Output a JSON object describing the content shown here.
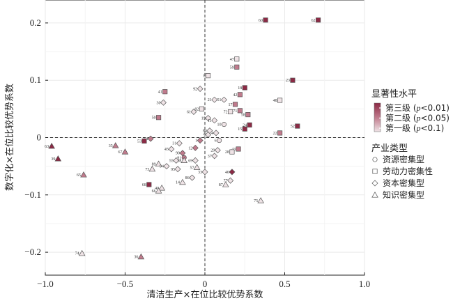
{
  "chart_data": {
    "type": "scatter",
    "title": "",
    "xlabel": "清洁生产×在位比较优势系数",
    "ylabel": "数字化×在位比较优势系数",
    "xlim": [
      -1.0,
      1.0
    ],
    "ylim": [
      -0.24,
      0.24
    ],
    "xticks": [
      -1.0,
      -0.5,
      0,
      0.5,
      1.0
    ],
    "xtick_labels": [
      "−1.0",
      "−0.5",
      "0",
      "0.5",
      "1.0"
    ],
    "yticks": [
      -0.2,
      -0.1,
      0,
      0.1,
      0.2
    ],
    "ytick_labels": [
      "−0.2",
      "−0.1",
      "0",
      "0.1",
      "0.2"
    ],
    "grid": true,
    "reference_lines": {
      "x": 0,
      "y": 0,
      "style": "dashed"
    },
    "legend": {
      "placement": "right",
      "significance_title": "显著性水平",
      "significance_levels": [
        {
          "text": "第三级 (",
          "p": "p",
          "rest": "<0.01)",
          "color": "#8c2a45"
        },
        {
          "text": "第二级 (",
          "p": "p",
          "rest": "<0.05)",
          "color": "#c07a8c"
        },
        {
          "text": "第一级 (",
          "p": "p",
          "rest": "<0.1)",
          "color": "#efe3e6"
        }
      ],
      "industry_title": "产业类型",
      "industry_types": [
        {
          "label": "资源密集型",
          "shape": "circle"
        },
        {
          "label": "劳动力密集性",
          "shape": "square"
        },
        {
          "label": "资本密集型",
          "shape": "diamond"
        },
        {
          "label": "知识密集型",
          "shape": "triangle"
        }
      ]
    },
    "points": [
      {
        "id": "62",
        "x": 0.71,
        "y": 0.205,
        "shape": "square",
        "level": 3
      },
      {
        "id": "60",
        "x": 0.38,
        "y": 0.205,
        "shape": "square",
        "level": 3
      },
      {
        "id": "47",
        "x": 0.2,
        "y": 0.137,
        "shape": "square",
        "level": 1
      },
      {
        "id": "59",
        "x": 0.2,
        "y": 0.123,
        "shape": "square",
        "level": 2
      },
      {
        "id": "23",
        "x": 0.55,
        "y": 0.1,
        "shape": "square",
        "level": 3
      },
      {
        "id": "8",
        "x": 0.02,
        "y": 0.108,
        "shape": "square",
        "level": 1
      },
      {
        "id": "92",
        "x": -0.03,
        "y": 0.085,
        "shape": "diamond",
        "level": 1
      },
      {
        "id": "41",
        "x": -0.25,
        "y": 0.08,
        "shape": "square",
        "level": 2
      },
      {
        "id": "18",
        "x": 0.25,
        "y": 0.087,
        "shape": "square",
        "level": 3
      },
      {
        "id": "21",
        "x": 0.06,
        "y": 0.066,
        "shape": "diamond",
        "level": 1
      },
      {
        "id": "51",
        "x": 0.12,
        "y": 0.066,
        "shape": "diamond",
        "level": 1
      },
      {
        "id": "42",
        "x": 0.22,
        "y": 0.075,
        "shape": "square",
        "level": 2
      },
      {
        "id": "48",
        "x": 0.47,
        "y": 0.065,
        "shape": "square",
        "level": 1
      },
      {
        "id": "30",
        "x": -0.26,
        "y": 0.061,
        "shape": "diamond",
        "level": 1
      },
      {
        "id": "17",
        "x": 0.19,
        "y": 0.058,
        "shape": "square",
        "level": 2
      },
      {
        "id": "82",
        "x": -0.02,
        "y": 0.05,
        "shape": "square",
        "level": 1
      },
      {
        "id": "61",
        "x": -0.07,
        "y": 0.045,
        "shape": "diamond",
        "level": 1
      },
      {
        "id": "50",
        "x": -0.29,
        "y": 0.035,
        "shape": "square",
        "level": 2
      },
      {
        "id": "71",
        "x": 0.22,
        "y": 0.047,
        "shape": "square",
        "level": 2
      },
      {
        "id": "72",
        "x": 0.16,
        "y": 0.045,
        "shape": "square",
        "level": 1
      },
      {
        "id": "58",
        "x": 0.27,
        "y": 0.04,
        "shape": "square",
        "level": 2
      },
      {
        "id": "52",
        "x": 0.58,
        "y": 0.02,
        "shape": "square",
        "level": 3
      },
      {
        "id": "24",
        "x": 0.28,
        "y": 0.022,
        "shape": "square",
        "level": 3
      },
      {
        "id": "15",
        "x": 0.25,
        "y": 0.015,
        "shape": "square",
        "level": 3
      },
      {
        "id": "22",
        "x": 0.47,
        "y": 0.008,
        "shape": "square",
        "level": 2
      },
      {
        "id": "19",
        "x": 0.02,
        "y": 0.034,
        "shape": "diamond",
        "level": 1
      },
      {
        "id": "11",
        "x": 0.06,
        "y": 0.03,
        "shape": "diamond",
        "level": 1
      },
      {
        "id": "10",
        "x": 0.12,
        "y": 0.023,
        "shape": "circle",
        "level": 1
      },
      {
        "id": "84",
        "x": 0.03,
        "y": 0.012,
        "shape": "diamond",
        "level": 1
      },
      {
        "id": "9",
        "x": 0.02,
        "y": 0.005,
        "shape": "diamond",
        "level": 1
      },
      {
        "id": "4",
        "x": 0.07,
        "y": 0.008,
        "shape": "diamond",
        "level": 1
      },
      {
        "id": "6",
        "x": 0.09,
        "y": -0.005,
        "shape": "circle",
        "level": 1
      },
      {
        "id": "54",
        "x": -0.34,
        "y": -0.002,
        "shape": "diamond",
        "level": 2
      },
      {
        "id": "53",
        "x": -0.38,
        "y": -0.006,
        "shape": "square",
        "level": 3
      },
      {
        "id": "31",
        "x": -0.16,
        "y": -0.01,
        "shape": "diamond",
        "level": 1
      },
      {
        "id": "1",
        "x": -0.03,
        "y": -0.005,
        "shape": "diamond",
        "level": 2
      },
      {
        "id": "63",
        "x": -0.96,
        "y": -0.015,
        "shape": "triangle",
        "level": 3
      },
      {
        "id": "39",
        "x": -0.92,
        "y": -0.037,
        "shape": "triangle",
        "level": 3
      },
      {
        "id": "35",
        "x": -0.56,
        "y": -0.014,
        "shape": "triangle",
        "level": 2
      },
      {
        "id": "67",
        "x": -0.5,
        "y": -0.025,
        "shape": "triangle",
        "level": 2
      },
      {
        "id": "45",
        "x": -0.21,
        "y": -0.02,
        "shape": "diamond",
        "level": 1
      },
      {
        "id": "12",
        "x": -0.06,
        "y": -0.018,
        "shape": "diamond",
        "level": 2
      },
      {
        "id": "29",
        "x": 0.08,
        "y": -0.022,
        "shape": "diamond",
        "level": 1
      },
      {
        "id": "43",
        "x": 0.21,
        "y": -0.02,
        "shape": "square",
        "level": 2
      },
      {
        "id": "28",
        "x": 0.17,
        "y": -0.025,
        "shape": "square",
        "level": 1
      },
      {
        "id": "37",
        "x": 0.06,
        "y": -0.032,
        "shape": "diamond",
        "level": 1
      },
      {
        "id": "90",
        "x": -0.14,
        "y": -0.027,
        "shape": "diamond",
        "level": 2
      },
      {
        "id": "91",
        "x": -0.13,
        "y": -0.035,
        "shape": "circle",
        "level": 2
      },
      {
        "id": "55",
        "x": -0.18,
        "y": -0.04,
        "shape": "diamond",
        "level": 1
      },
      {
        "id": "18b",
        "x": -0.13,
        "y": -0.04,
        "shape": "triangle",
        "level": 1
      },
      {
        "id": "69",
        "x": -0.06,
        "y": -0.04,
        "shape": "diamond",
        "level": 1
      },
      {
        "id": "89",
        "x": -0.29,
        "y": -0.046,
        "shape": "triangle",
        "level": 1
      },
      {
        "id": "73",
        "x": -0.33,
        "y": -0.055,
        "shape": "triangle",
        "level": 1
      },
      {
        "id": "94",
        "x": -0.24,
        "y": -0.05,
        "shape": "diamond",
        "level": 1
      },
      {
        "id": "95",
        "x": -0.17,
        "y": -0.055,
        "shape": "diamond",
        "level": 1
      },
      {
        "id": "57",
        "x": -0.05,
        "y": -0.052,
        "shape": "triangle",
        "level": 1
      },
      {
        "id": "33",
        "x": 0.0,
        "y": -0.06,
        "shape": "diamond",
        "level": 1
      },
      {
        "id": "46",
        "x": 0.17,
        "y": -0.06,
        "shape": "diamond",
        "level": 3
      },
      {
        "id": "77",
        "x": 0.16,
        "y": -0.075,
        "shape": "diamond",
        "level": 1
      },
      {
        "id": "87",
        "x": 0.13,
        "y": -0.082,
        "shape": "triangle",
        "level": 1
      },
      {
        "id": "86",
        "x": -0.08,
        "y": -0.07,
        "shape": "diamond",
        "level": 1
      },
      {
        "id": "14",
        "x": -0.14,
        "y": -0.078,
        "shape": "triangle",
        "level": 1
      },
      {
        "id": "40",
        "x": -0.27,
        "y": -0.088,
        "shape": "triangle",
        "level": 1
      },
      {
        "id": "66",
        "x": -0.29,
        "y": -0.093,
        "shape": "triangle",
        "level": 1
      },
      {
        "id": "68",
        "x": -0.35,
        "y": -0.082,
        "shape": "square",
        "level": 3
      },
      {
        "id": "65",
        "x": -0.76,
        "y": -0.065,
        "shape": "triangle",
        "level": 2
      },
      {
        "id": "75",
        "x": 0.35,
        "y": -0.11,
        "shape": "triangle",
        "level": 1
      },
      {
        "id": "74",
        "x": -0.77,
        "y": -0.202,
        "shape": "triangle",
        "level": 1
      },
      {
        "id": "36",
        "x": -0.4,
        "y": -0.208,
        "shape": "triangle",
        "level": 2
      }
    ]
  }
}
